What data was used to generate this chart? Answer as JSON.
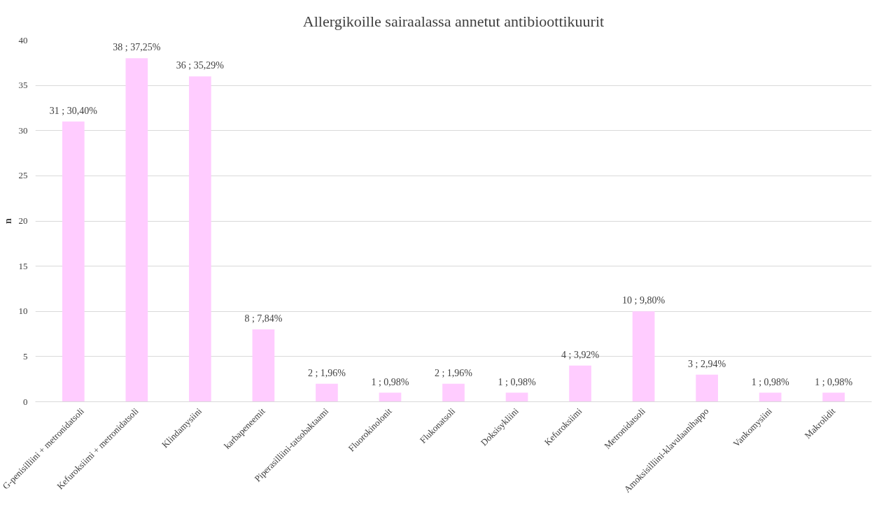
{
  "chart_data": {
    "type": "bar",
    "title": "Allergikoille sairaalassa annetut antibioottikuurit",
    "ylabel": "n",
    "categories": [
      "G-penisilliini + metronidatsoli",
      "Kefuroksiimi + metronidatsoli",
      "Klindamysiini",
      "karbapeneemit",
      "Piperasilliini-tatsobaktaami",
      "Fluorokinolonit",
      "Flukonatsoli",
      "Doksisykliini",
      "Kefuroksiimi",
      "Metronidatsoli",
      "Amoksisilliini-klavulaanihappo",
      "Vankomysiini",
      "Makrolidit"
    ],
    "values": [
      31,
      38,
      36,
      8,
      2,
      1,
      2,
      1,
      4,
      10,
      3,
      1,
      1
    ],
    "value_labels": [
      "31 ; 30,40%",
      "38 ; 37,25%",
      "36 ; 35,29%",
      "8 ; 7,84%",
      "2 ; 1,96%",
      "1 ; 0,98%",
      "2 ; 1,96%",
      "1 ; 0,98%",
      "4 ; 3,92%",
      "10 ; 9,80%",
      "3 ; 2,94%",
      "1 ; 0,98%",
      "1 ; 0,98%"
    ],
    "color": "#ffccff",
    "ylim": [
      0,
      40
    ],
    "yticks": [
      0,
      5,
      10,
      15,
      20,
      25,
      30,
      35,
      40
    ],
    "grid": "y"
  }
}
